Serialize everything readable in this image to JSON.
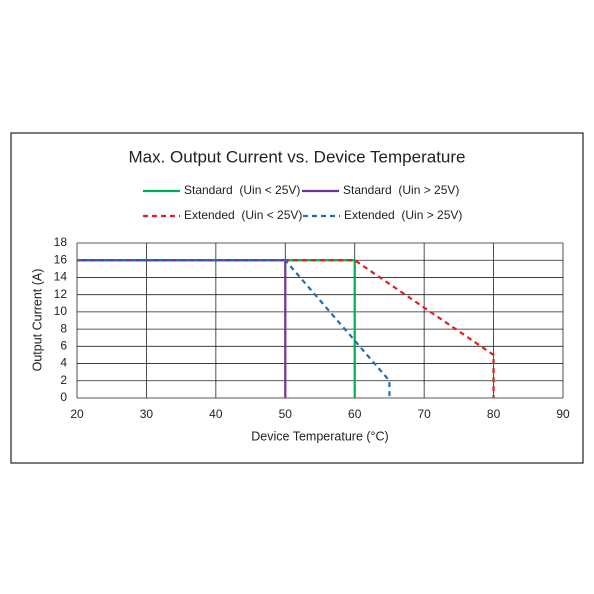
{
  "chart_data": {
    "type": "line",
    "title": "Max. Output Current vs. Device Temperature",
    "x_label": "Device Temperature (°C)",
    "y_label": "Output Current (A)",
    "xlim": [
      20,
      90
    ],
    "xticks": [
      20,
      30,
      40,
      50,
      60,
      70,
      80,
      90
    ],
    "ylim": [
      0,
      18
    ],
    "yticks": [
      0,
      2,
      4,
      6,
      8,
      10,
      12,
      14,
      16,
      18
    ],
    "grid": true,
    "legend": "top",
    "series": [
      {
        "name": "Standard  (Uin < 25V)",
        "color": "#00b050",
        "style": "solid",
        "x": [
          20,
          60,
          60
        ],
        "values": [
          16,
          16,
          0
        ]
      },
      {
        "name": "Standard  (Uin > 25V)",
        "color": "#7030a0",
        "style": "solid",
        "x": [
          20,
          50,
          50
        ],
        "values": [
          16,
          16,
          0
        ]
      },
      {
        "name": "Extended  (Uin < 25V)",
        "color": "#e02020",
        "style": "dashed",
        "x": [
          20,
          60,
          80,
          80
        ],
        "values": [
          16,
          16,
          5,
          0
        ]
      },
      {
        "name": "Extended  (Uin > 25V)",
        "color": "#2070b0",
        "style": "dashed",
        "x": [
          20,
          50,
          65,
          65
        ],
        "values": [
          16,
          16,
          2,
          0
        ]
      }
    ]
  }
}
